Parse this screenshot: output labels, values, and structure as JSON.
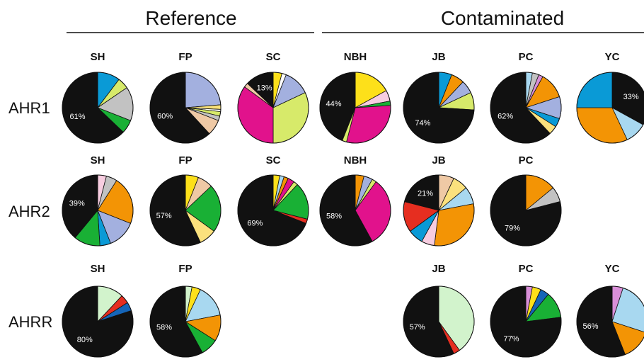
{
  "chart_data": {
    "type": "pie",
    "groups": [
      "Reference",
      "Contaminated"
    ],
    "rows": [
      {
        "label": "AHR1",
        "pies": [
          {
            "site": "SH",
            "group": "Reference",
            "label": "61%",
            "slices": [
              {
                "color": "#0a9ad6",
                "value": 10
              },
              {
                "color": "#d7ea6a",
                "value": 5
              },
              {
                "color": "#c2c2c2",
                "value": 15
              },
              {
                "color": "#19b035",
                "value": 6
              },
              {
                "color": "#111111",
                "value": 61
              }
            ]
          },
          {
            "site": "FP",
            "group": "Reference",
            "label": "60%",
            "slices": [
              {
                "color": "#a3b0df",
                "value": 23
              },
              {
                "color": "#f8e07a",
                "value": 2
              },
              {
                "color": "#ffffff",
                "value": 1
              },
              {
                "color": "#d7ea6a",
                "value": 2
              },
              {
                "color": "#c2c2c2",
                "value": 2
              },
              {
                "color": "#efc9a5",
                "value": 7
              },
              {
                "color": "#111111",
                "value": 60
              }
            ]
          },
          {
            "site": "SC",
            "group": "Reference",
            "label": "13%",
            "slices": [
              {
                "color": "#fde01a",
                "value": 4
              },
              {
                "color": "#ffffff",
                "value": 2
              },
              {
                "color": "#a3b0df",
                "value": 12
              },
              {
                "color": "#d7ea6a",
                "value": 32
              },
              {
                "color": "#e1128c",
                "value": 35
              },
              {
                "color": "#efc9a5",
                "value": 2
              },
              {
                "color": "#111111",
                "value": 13
              }
            ]
          },
          {
            "site": "NBH",
            "group": "Contaminated",
            "label": "44%",
            "slices": [
              {
                "color": "#fde01a",
                "value": 17
              },
              {
                "color": "#f7cde0",
                "value": 5
              },
              {
                "color": "#19b035",
                "value": 2
              },
              {
                "color": "#e1128c",
                "value": 30
              },
              {
                "color": "#d7ea6a",
                "value": 2
              },
              {
                "color": "#111111",
                "value": 44
              }
            ]
          },
          {
            "site": "JB",
            "group": "Contaminated",
            "label": "74%",
            "slices": [
              {
                "color": "#0a9ad6",
                "value": 6
              },
              {
                "color": "#f39405",
                "value": 6
              },
              {
                "color": "#a3b0df",
                "value": 6
              },
              {
                "color": "#d7ea6a",
                "value": 8
              },
              {
                "color": "#111111",
                "value": 74
              }
            ]
          },
          {
            "site": "PC",
            "group": "Contaminated",
            "label": "62%",
            "slices": [
              {
                "color": "#a8d8f0",
                "value": 3
              },
              {
                "color": "#c2c2c2",
                "value": 3
              },
              {
                "color": "#d98fd8",
                "value": 2
              },
              {
                "color": "#f39405",
                "value": 12
              },
              {
                "color": "#a3b0df",
                "value": 10
              },
              {
                "color": "#0a9ad6",
                "value": 4
              },
              {
                "color": "#fbe17d",
                "value": 4
              },
              {
                "color": "#111111",
                "value": 62
              }
            ]
          },
          {
            "site": "YC",
            "group": "Contaminated",
            "label": "33%",
            "slices": [
              {
                "color": "#111111",
                "value": 33
              },
              {
                "color": "#a8d8f0",
                "value": 10
              },
              {
                "color": "#f39405",
                "value": 32
              },
              {
                "color": "#0a9ad6",
                "value": 25
              }
            ]
          }
        ]
      },
      {
        "label": "AHR2",
        "pies": [
          {
            "site": "SH",
            "group": "Reference",
            "label": "39%",
            "slices": [
              {
                "color": "#f7cde0",
                "value": 4
              },
              {
                "color": "#c2c2c2",
                "value": 5
              },
              {
                "color": "#f39405",
                "value": 22
              },
              {
                "color": "#a3b0df",
                "value": 13
              },
              {
                "color": "#0a9ad6",
                "value": 5
              },
              {
                "color": "#19b035",
                "value": 12
              },
              {
                "color": "#111111",
                "value": 39
              }
            ]
          },
          {
            "site": "FP",
            "group": "Reference",
            "label": "57%",
            "slices": [
              {
                "color": "#fde01a",
                "value": 6
              },
              {
                "color": "#efc9a5",
                "value": 7
              },
              {
                "color": "#19b035",
                "value": 22
              },
              {
                "color": "#fbe17d",
                "value": 8
              },
              {
                "color": "#111111",
                "value": 57
              }
            ]
          },
          {
            "site": "SC",
            "group": "Reference",
            "label": "69%",
            "slices": [
              {
                "color": "#fde01a",
                "value": 3
              },
              {
                "color": "#a8d8f0",
                "value": 2
              },
              {
                "color": "#f39405",
                "value": 2
              },
              {
                "color": "#e1128c",
                "value": 3
              },
              {
                "color": "#d7ea6a",
                "value": 2
              },
              {
                "color": "#19b035",
                "value": 17
              },
              {
                "color": "#e62e20",
                "value": 2
              },
              {
                "color": "#111111",
                "value": 69
              }
            ]
          },
          {
            "site": "NBH",
            "group": "Contaminated",
            "label": "58%",
            "slices": [
              {
                "color": "#f39405",
                "value": 4
              },
              {
                "color": "#a3b0df",
                "value": 4
              },
              {
                "color": "#d7ea6a",
                "value": 2
              },
              {
                "color": "#e1128c",
                "value": 32
              },
              {
                "color": "#111111",
                "value": 58
              }
            ]
          },
          {
            "site": "JB",
            "group": "Contaminated",
            "label": "21%",
            "slices": [
              {
                "color": "#efc9a5",
                "value": 7
              },
              {
                "color": "#fbe17d",
                "value": 7
              },
              {
                "color": "#a8d8f0",
                "value": 8
              },
              {
                "color": "#f39405",
                "value": 30
              },
              {
                "color": "#f7cde0",
                "value": 6
              },
              {
                "color": "#0a9ad6",
                "value": 7
              },
              {
                "color": "#e62e20",
                "value": 14
              },
              {
                "color": "#111111",
                "value": 21
              }
            ]
          },
          {
            "site": "PC",
            "group": "Contaminated",
            "label": "79%",
            "slices": [
              {
                "color": "#f39405",
                "value": 14
              },
              {
                "color": "#c2c2c2",
                "value": 7
              },
              {
                "color": "#111111",
                "value": 79
              }
            ]
          }
        ]
      },
      {
        "label": "AHRR",
        "pies": [
          {
            "site": "SH",
            "group": "Reference",
            "label": "80%",
            "slices": [
              {
                "color": "#d2f3cc",
                "value": 12
              },
              {
                "color": "#e62e20",
                "value": 4
              },
              {
                "color": "#1565b8",
                "value": 4
              },
              {
                "color": "#111111",
                "value": 80
              }
            ]
          },
          {
            "site": "FP",
            "group": "Reference",
            "label": "58%",
            "slices": [
              {
                "color": "#d2f3cc",
                "value": 3
              },
              {
                "color": "#fde01a",
                "value": 4
              },
              {
                "color": "#a8d8f0",
                "value": 15
              },
              {
                "color": "#f39405",
                "value": 12
              },
              {
                "color": "#19b035",
                "value": 8
              },
              {
                "color": "#111111",
                "value": 58
              }
            ]
          },
          {
            "site": "JB",
            "group": "Contaminated",
            "label": "57%",
            "slices": [
              {
                "color": "#d2f3cc",
                "value": 40
              },
              {
                "color": "#e62e20",
                "value": 3
              },
              {
                "color": "#111111",
                "value": 57
              }
            ]
          },
          {
            "site": "PC",
            "group": "Contaminated",
            "label": "77%",
            "slices": [
              {
                "color": "#d98fd8",
                "value": 3
              },
              {
                "color": "#fde01a",
                "value": 4
              },
              {
                "color": "#1565b8",
                "value": 4
              },
              {
                "color": "#19b035",
                "value": 12
              },
              {
                "color": "#111111",
                "value": 77
              }
            ]
          },
          {
            "site": "YC",
            "group": "Contaminated",
            "label": "56%",
            "slices": [
              {
                "color": "#d98fd8",
                "value": 5
              },
              {
                "color": "#a8d8f0",
                "value": 25
              },
              {
                "color": "#f39405",
                "value": 14
              },
              {
                "color": "#111111",
                "value": 56
              }
            ]
          }
        ]
      }
    ]
  }
}
